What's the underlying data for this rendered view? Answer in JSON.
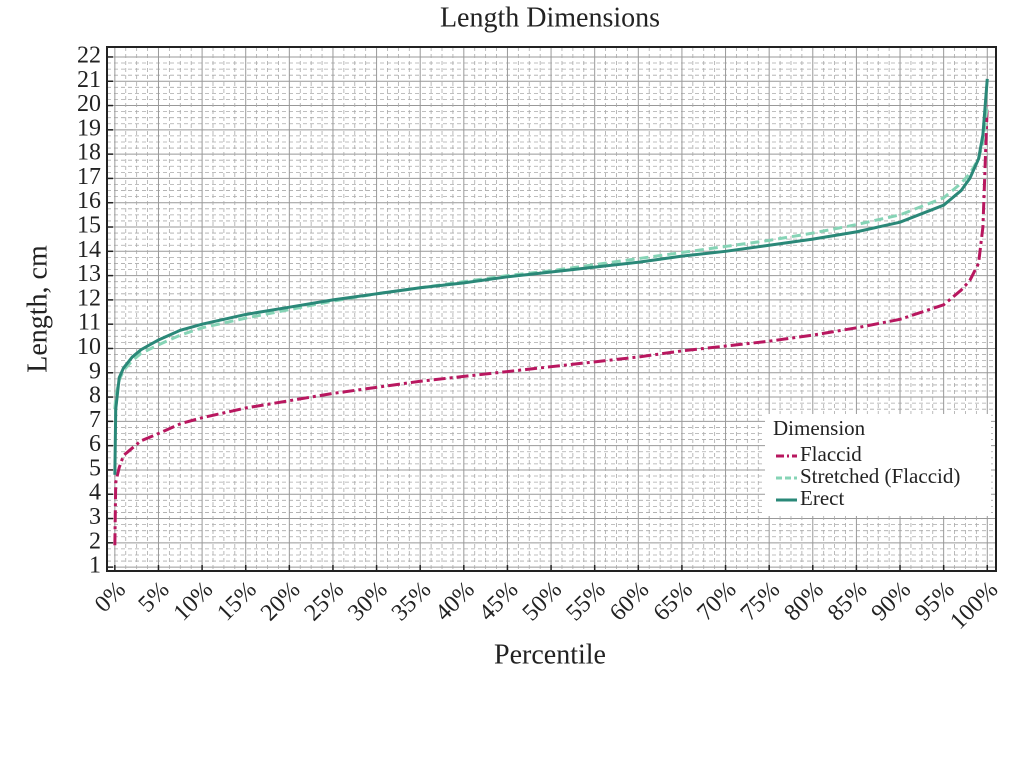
{
  "chart_data": {
    "type": "line",
    "title": "Length Dimensions",
    "xlabel": "Percentile",
    "ylabel": "Length, cm",
    "x": [
      0,
      0.1,
      0.5,
      1,
      2,
      3,
      5,
      7.5,
      10,
      15,
      20,
      25,
      30,
      35,
      40,
      45,
      50,
      55,
      60,
      65,
      70,
      75,
      80,
      85,
      90,
      95,
      97,
      98,
      99,
      99.5,
      100
    ],
    "series": [
      {
        "name": "Flaccid",
        "color": "#b8175f",
        "dash": "dashdot",
        "values": [
          1.9,
          4.5,
          5.1,
          5.6,
          5.9,
          6.2,
          6.5,
          6.9,
          7.15,
          7.55,
          7.85,
          8.15,
          8.4,
          8.65,
          8.85,
          9.05,
          9.25,
          9.45,
          9.65,
          9.9,
          10.1,
          10.3,
          10.55,
          10.85,
          11.2,
          11.8,
          12.4,
          12.8,
          13.5,
          15,
          20
        ]
      },
      {
        "name": "Stretched (Flaccid)",
        "color": "#86d4b6",
        "dash": "dashed",
        "values": [
          7.5,
          8,
          8.7,
          9.1,
          9.5,
          9.8,
          10.15,
          10.55,
          10.85,
          11.25,
          11.6,
          11.95,
          12.25,
          12.5,
          12.75,
          13,
          13.2,
          13.45,
          13.7,
          13.95,
          14.2,
          14.45,
          14.75,
          15.1,
          15.5,
          16.2,
          16.8,
          17.2,
          17.8,
          18.5,
          20
        ]
      },
      {
        "name": "Erect",
        "color": "#2a8878",
        "dash": "solid",
        "values": [
          4.8,
          7.5,
          8.8,
          9.2,
          9.65,
          9.95,
          10.35,
          10.75,
          11.0,
          11.4,
          11.7,
          12.0,
          12.25,
          12.5,
          12.7,
          12.95,
          13.15,
          13.35,
          13.55,
          13.8,
          14.0,
          14.25,
          14.5,
          14.8,
          15.2,
          15.9,
          16.5,
          17,
          17.8,
          18.8,
          21.1
        ]
      }
    ],
    "legend_title": "Dimension",
    "legend": "lower right",
    "xlim": [
      -0.9,
      101
    ],
    "ylim": [
      0.84,
      22.41
    ],
    "xticks": [
      {
        "value": 0,
        "label": "0%"
      },
      {
        "value": 5,
        "label": "5%"
      },
      {
        "value": 10,
        "label": "10%"
      },
      {
        "value": 15,
        "label": "15%"
      },
      {
        "value": 20,
        "label": "20%"
      },
      {
        "value": 25,
        "label": "25%"
      },
      {
        "value": 30,
        "label": "30%"
      },
      {
        "value": 35,
        "label": "35%"
      },
      {
        "value": 40,
        "label": "40%"
      },
      {
        "value": 45,
        "label": "45%"
      },
      {
        "value": 50,
        "label": "50%"
      },
      {
        "value": 55,
        "label": "55%"
      },
      {
        "value": 60,
        "label": "60%"
      },
      {
        "value": 65,
        "label": "65%"
      },
      {
        "value": 70,
        "label": "70%"
      },
      {
        "value": 75,
        "label": "75%"
      },
      {
        "value": 80,
        "label": "80%"
      },
      {
        "value": 85,
        "label": "85%"
      },
      {
        "value": 90,
        "label": "90%"
      },
      {
        "value": 95,
        "label": "95%"
      },
      {
        "value": 100,
        "label": "100%"
      }
    ],
    "yticks": [
      1,
      2,
      3,
      4,
      5,
      6,
      7,
      8,
      9,
      10,
      11,
      12,
      13,
      14,
      15,
      16,
      17,
      18,
      19,
      20,
      21,
      22
    ],
    "grid": true,
    "minor_grid": true
  }
}
